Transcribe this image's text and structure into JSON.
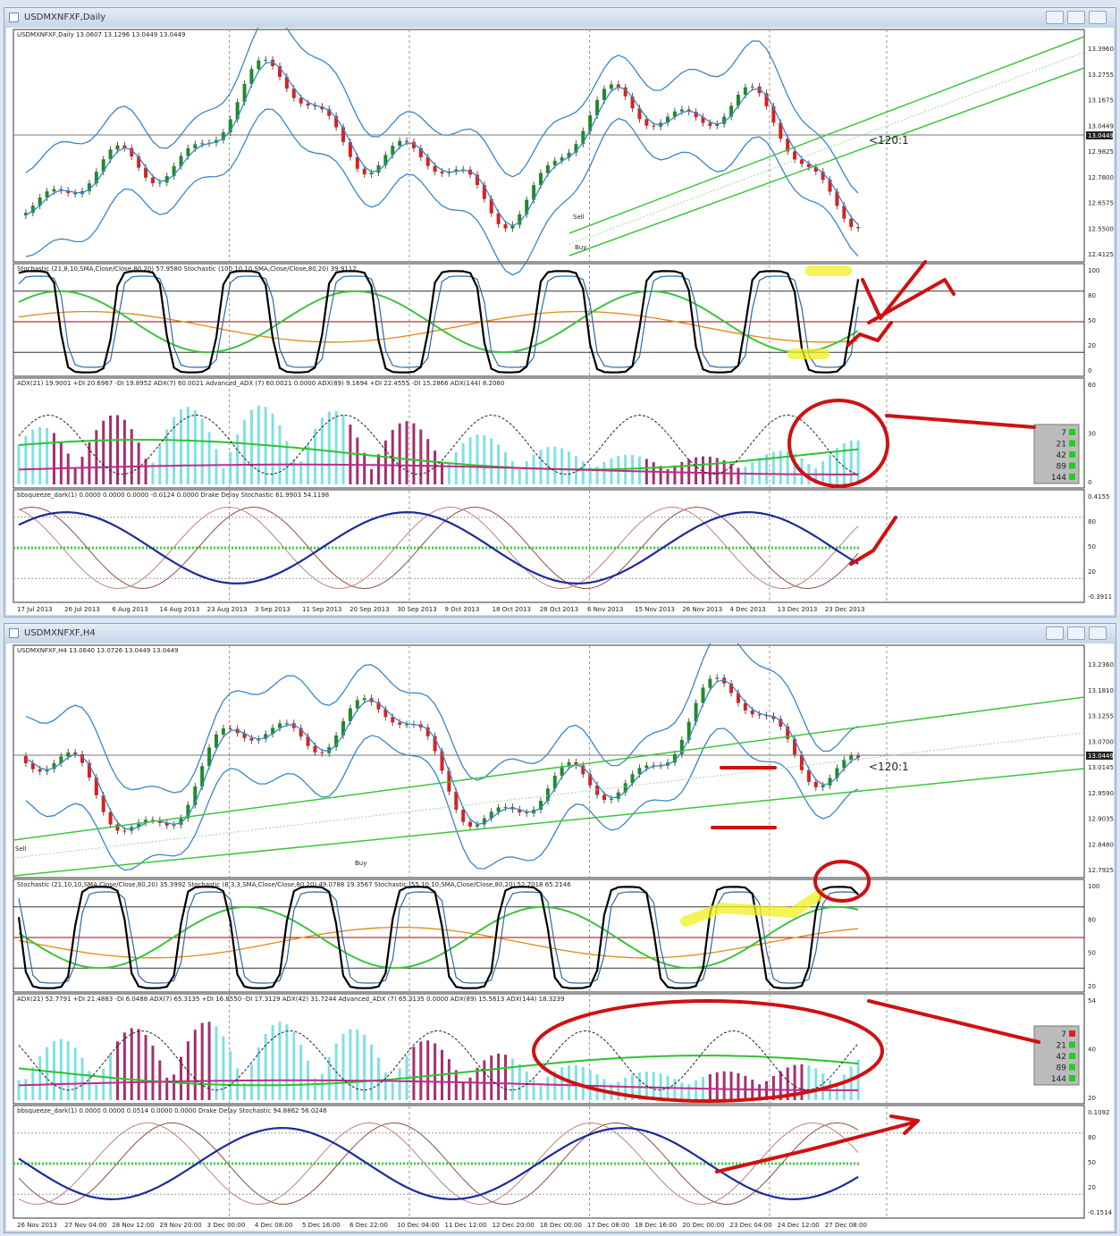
{
  "windows": [
    {
      "title": "USDMXNFXF,Daily",
      "header": "USDMXNFXF,Daily 13.0607 13.1296 13.0449 13.0449",
      "price_labels": [
        "13.3960",
        "13.2755",
        "13.1675",
        "13.0449",
        "12.9825",
        "12.7800",
        "12.6575",
        "12.5500",
        "12.4125"
      ],
      "current_price": "13.0449",
      "annotation": "<120:1",
      "channel_labels": [
        "Sell",
        "Buy"
      ],
      "panels": [
        {
          "header": "Stochastic (21,8,10,SMA,Close/Close,80,20) 57.9580  Stochastic (100,10,10,SMA,Close/Close,80,20) 39.9112",
          "scale": [
            "100",
            "80",
            "50",
            "20",
            "0"
          ]
        },
        {
          "header": "ADX(21) 19.9001 +DI 20.6967 -DI 19.8952  ADX(7) 60.0021  Advanced_ADX (7) 60.0021 0.0000  ADX(89) 9.1694 +DI 22.4555 -DI 15.2866  ADX(144) 8.2060",
          "scale": [
            "60",
            "30",
            "0"
          ]
        },
        {
          "header": "bbsqueeze_dark(1) 0.0000 0.0000 0.0000 -0.0124 0.0000  Drake Delay Stochastic 61.9903 54.1198",
          "scale": [
            "0.4155",
            "80",
            "50",
            "20",
            "-0.3911"
          ]
        }
      ],
      "legend": [
        "7",
        "21",
        "42",
        "89",
        "144"
      ],
      "dates": [
        "17 Jul 2013",
        "26 Jul 2013",
        "6 Aug 2013",
        "14 Aug 2013",
        "23 Aug 2013",
        "3 Sep 2013",
        "11 Sep 2013",
        "20 Sep 2013",
        "30 Sep 2013",
        "9 Oct 2013",
        "18 Oct 2013",
        "28 Oct 2013",
        "6 Nov 2013",
        "15 Nov 2013",
        "26 Nov 2013",
        "4 Dec 2013",
        "13 Dec 2013",
        "23 Dec 2013"
      ]
    },
    {
      "title": "USDMXNFXF,H4",
      "header": "USDMXNFXF,H4 13.0640 13.0726 13.0449 13.0449",
      "price_labels": [
        "13.2360",
        "13.1810",
        "13.1255",
        "13.0700",
        "13.0145",
        "12.9590",
        "12.9035",
        "12.8480",
        "12.7925"
      ],
      "current_price": "13.0449",
      "annotation": "<120:1",
      "channel_labels": [
        "Sell",
        "Buy"
      ],
      "panels": [
        {
          "header": "Stochastic (21,10,10,SMA,Close/Close,80,20) 35.3992  Stochastic (8,3,3,SMA,Close/Close,80,20) 49.0788 19.3567  Stochastic (55,10,10,SMA,Close/Close,80,20) 52.7018 65.2146",
          "scale": [
            "100",
            "80",
            "50",
            "20"
          ]
        },
        {
          "header": "ADX(21) 52.7791 +DI 21.4883 -DI 6.0488  ADX(7) 65.3135 +DI 16.8550 -DI 17.3129  ADX(42) 31.7244  Advanced_ADX (7) 65.3135 0.0000  ADX(89) 15.5613  ADX(144) 18.3239",
          "scale": [
            "54",
            "40",
            "20"
          ]
        },
        {
          "header": "bbsqueeze_dark(1) 0.0000 0.0000 0.0514 0.0000 0.0000  Drake Delay Stochastic 94.8862 56.0246",
          "scale": [
            "0.1092",
            "80",
            "50",
            "20",
            "-0.1514"
          ]
        }
      ],
      "legend": [
        "7",
        "21",
        "42",
        "89",
        "144"
      ],
      "dates": [
        "26 Nov 2013",
        "27 Nov 04:00",
        "28 Nov 12:00",
        "29 Nov 20:00",
        "3 Dec 00:00",
        "4 Dec 08:00",
        "5 Dec 16:00",
        "6 Dec 22:00",
        "10 Dec 04:00",
        "11 Dec 12:00",
        "12 Dec 20:00",
        "16 Dec 00:00",
        "17 Dec 08:00",
        "18 Dec 16:00",
        "20 Dec 00:00",
        "23 Dec 04:00",
        "24 Dec 12:00",
        "27 Dec 08:00"
      ]
    }
  ]
}
